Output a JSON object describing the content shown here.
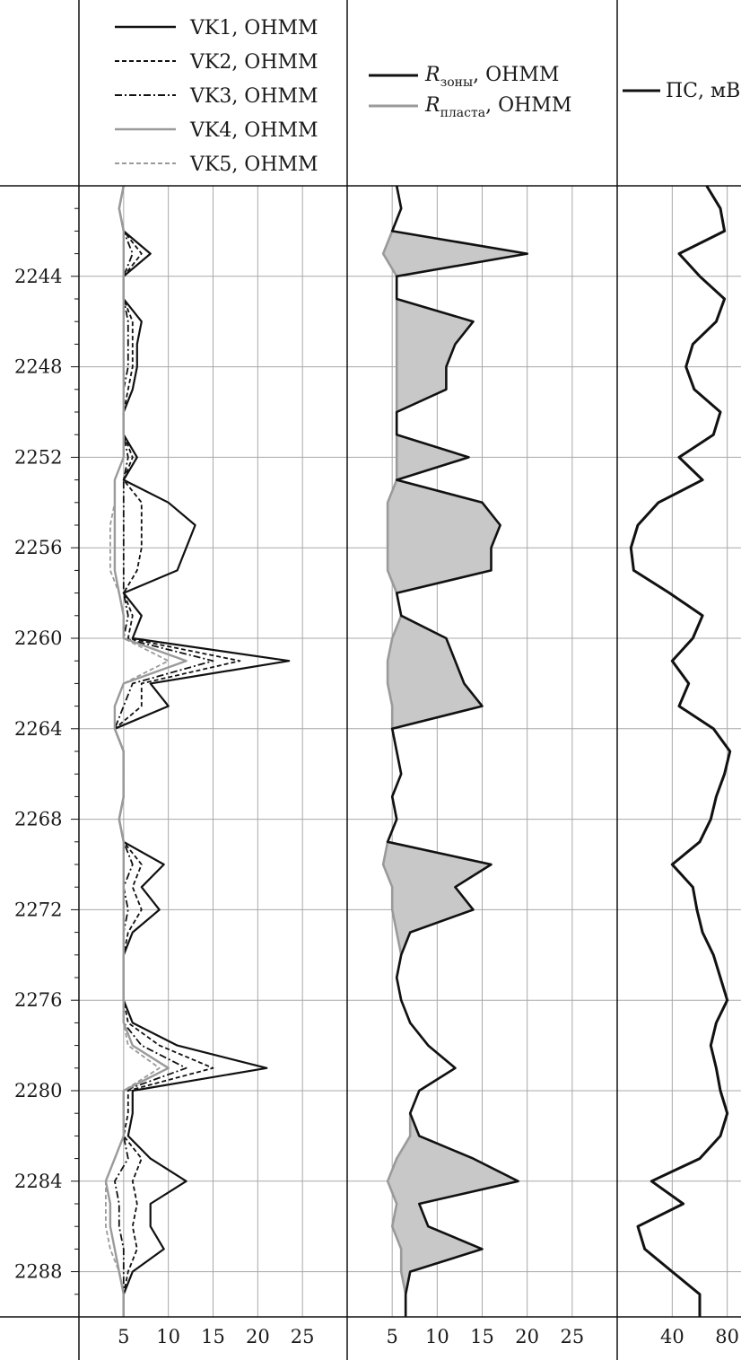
{
  "chart_data": [
    {
      "type": "line",
      "track": "induction-sounding",
      "legend": [
        "VK1, OHMM",
        "VK2, OHMM",
        "VK3, OHMM",
        "VK4, OHMM",
        "VK5, OHMM"
      ],
      "x_ticks": [
        "5",
        "10",
        "15",
        "20",
        "25"
      ],
      "xlim": [
        0,
        30
      ],
      "depth_ticks": [
        "2244",
        "2248",
        "2252",
        "2256",
        "2260",
        "2264",
        "2268",
        "2272",
        "2276",
        "2280",
        "2284",
        "2288"
      ],
      "ylim": [
        2240,
        2290
      ],
      "colors": {
        "VK1": "#111111",
        "VK2": "#111111",
        "VK3": "#111111",
        "VK4": "#9a9a9a",
        "VK5": "#9a9a9a"
      },
      "depth": [
        2240,
        2241,
        2242,
        2243,
        2244,
        2245,
        2246,
        2247,
        2248,
        2249,
        2250,
        2251,
        2252,
        2253,
        2254,
        2255,
        2256,
        2257,
        2258,
        2259,
        2260,
        2261,
        2262,
        2263,
        2264,
        2265,
        2266,
        2267,
        2268,
        2269,
        2270,
        2271,
        2272,
        2273,
        2274,
        2275,
        2276,
        2277,
        2278,
        2279,
        2280,
        2281,
        2282,
        2283,
        2284,
        2285,
        2286,
        2287,
        2288,
        2289,
        2290
      ],
      "series": [
        {
          "name": "VK1, OHMM",
          "values": [
            5,
            4.5,
            5,
            8,
            5,
            5,
            7,
            6.5,
            6.5,
            6,
            5,
            5,
            6.5,
            5,
            10,
            13,
            12,
            11,
            5,
            7,
            6,
            23.5,
            8,
            10,
            4,
            5,
            5,
            5,
            4.5,
            5,
            9.5,
            7,
            9,
            6,
            5,
            5,
            5,
            6,
            11,
            21,
            6,
            6,
            5.5,
            8,
            12,
            8,
            8,
            9.5,
            6,
            5,
            5
          ]
        },
        {
          "name": "VK2, OHMM",
          "values": [
            5,
            4.5,
            5,
            7,
            5,
            5,
            6,
            6,
            6,
            5.5,
            5,
            5,
            6,
            5,
            7,
            7,
            7,
            6.5,
            5,
            6,
            5.5,
            18,
            7,
            7,
            4,
            5,
            5,
            5,
            4.5,
            5,
            7,
            6,
            7,
            5.5,
            5,
            5,
            5,
            5.5,
            9,
            15,
            5.5,
            5.5,
            5,
            7,
            6,
            6.5,
            6,
            6.5,
            5.5,
            5,
            5
          ]
        },
        {
          "name": "VK3, OHMM",
          "values": [
            5,
            4.5,
            5,
            6,
            5,
            5,
            5.5,
            5.5,
            5.5,
            5,
            5,
            5,
            5.5,
            5,
            5,
            5,
            5,
            5,
            5,
            5.5,
            5,
            15,
            6,
            5,
            4,
            5,
            5,
            5,
            4.5,
            5,
            6,
            5,
            5.5,
            5,
            5,
            5,
            5,
            5,
            7,
            12,
            5,
            5,
            5,
            5.5,
            4,
            4.5,
            4.5,
            5,
            5,
            5,
            5
          ]
        },
        {
          "name": "VK4, OHMM",
          "values": [
            5,
            4.5,
            5,
            5,
            5,
            5,
            5,
            5,
            5,
            5,
            5,
            5,
            5,
            4,
            4,
            4,
            4,
            4,
            4.5,
            5,
            5,
            12,
            5,
            4,
            4,
            5,
            5,
            5,
            4.5,
            5,
            5,
            5,
            5,
            5,
            5,
            5,
            5,
            5,
            6,
            10,
            5,
            5,
            5,
            4,
            3,
            3.5,
            3.5,
            4,
            4.5,
            5,
            5
          ]
        },
        {
          "name": "VK5, OHMM",
          "values": [
            5,
            4.5,
            5,
            5,
            5,
            5,
            5,
            5,
            5,
            5,
            5,
            5,
            5,
            4,
            4,
            3.5,
            3.5,
            3.5,
            4.5,
            5,
            5,
            10,
            5,
            4,
            4,
            5,
            5,
            5,
            4.5,
            5,
            5,
            5,
            5,
            5,
            5,
            5,
            5,
            5,
            5.5,
            9,
            5,
            5,
            5,
            4,
            3,
            3,
            3,
            3.5,
            4.5,
            5,
            5
          ]
        }
      ]
    },
    {
      "type": "area",
      "track": "resistivity",
      "legend": [
        {
          "symbol": "R",
          "subscript": "зоны",
          "unit": ", OHMM"
        },
        {
          "symbol": "R",
          "subscript": "пласта",
          "unit": ", OHMM"
        }
      ],
      "x_ticks": [
        "5",
        "10",
        "15",
        "20",
        "25"
      ],
      "xlim": [
        0,
        30
      ],
      "ylim": [
        2240,
        2290
      ],
      "fill_color": "#c8c8c8",
      "colors": {
        "R_zone": "#111111",
        "R_formation": "#9a9a9a"
      },
      "depth": [
        2240,
        2241,
        2242,
        2243,
        2244,
        2245,
        2246,
        2247,
        2248,
        2249,
        2250,
        2251,
        2252,
        2253,
        2254,
        2255,
        2256,
        2257,
        2258,
        2259,
        2260,
        2261,
        2262,
        2263,
        2264,
        2265,
        2266,
        2267,
        2268,
        2269,
        2270,
        2271,
        2272,
        2273,
        2274,
        2275,
        2276,
        2277,
        2278,
        2279,
        2280,
        2281,
        2282,
        2283,
        2284,
        2285,
        2286,
        2287,
        2288,
        2289,
        2290
      ],
      "series": [
        {
          "name": "R_zone",
          "values": [
            5.5,
            6,
            5,
            20,
            5.5,
            5.5,
            14,
            12,
            11,
            11,
            5.5,
            5.5,
            13.5,
            5.5,
            15,
            17,
            16,
            16,
            5.5,
            6,
            11,
            12,
            13,
            15,
            5,
            5.5,
            6,
            5,
            5.5,
            4.5,
            16,
            12,
            14,
            7,
            6,
            5.5,
            6,
            7,
            9,
            12,
            8,
            7,
            8,
            14,
            19,
            8,
            9,
            15,
            7,
            6.5,
            6.5
          ]
        },
        {
          "name": "R_formation",
          "values": [
            5.5,
            6,
            5,
            4,
            5.5,
            5.5,
            5.5,
            5.5,
            5.5,
            5.5,
            5.5,
            5.5,
            5.5,
            5.5,
            4.5,
            4.5,
            4.5,
            4.5,
            5.5,
            6,
            5,
            4.5,
            4.5,
            5,
            5,
            5.5,
            6,
            5,
            5.5,
            4.5,
            4,
            5,
            5,
            5.5,
            6,
            5.5,
            6,
            7,
            9,
            12,
            8,
            7,
            7,
            5.5,
            4.5,
            5.5,
            5,
            6,
            6,
            6.5,
            6.5
          ]
        }
      ]
    },
    {
      "type": "line",
      "track": "spontaneous-potential",
      "legend": [
        "ПС, мВ"
      ],
      "x_ticks": [
        "40",
        "80"
      ],
      "xlim": [
        0,
        90
      ],
      "ylim": [
        2240,
        2290
      ],
      "colors": {
        "PS": "#111111"
      },
      "depth": [
        2240,
        2241,
        2242,
        2243,
        2244,
        2245,
        2246,
        2247,
        2248,
        2249,
        2250,
        2251,
        2252,
        2253,
        2254,
        2255,
        2256,
        2257,
        2258,
        2259,
        2260,
        2261,
        2262,
        2263,
        2264,
        2265,
        2266,
        2267,
        2268,
        2269,
        2270,
        2271,
        2272,
        2273,
        2274,
        2275,
        2276,
        2277,
        2278,
        2279,
        2280,
        2281,
        2282,
        2283,
        2284,
        2285,
        2286,
        2287,
        2288,
        2289,
        2290
      ],
      "series": [
        {
          "name": "ПС, мВ",
          "values": [
            65,
            75,
            78,
            45,
            60,
            78,
            72,
            55,
            50,
            56,
            75,
            70,
            45,
            62,
            30,
            15,
            10,
            12,
            38,
            62,
            55,
            40,
            52,
            45,
            70,
            82,
            78,
            72,
            68,
            60,
            40,
            55,
            58,
            62,
            70,
            75,
            80,
            72,
            68,
            72,
            75,
            80,
            75,
            60,
            25,
            48,
            15,
            20,
            40,
            60,
            60
          ]
        }
      ]
    }
  ]
}
